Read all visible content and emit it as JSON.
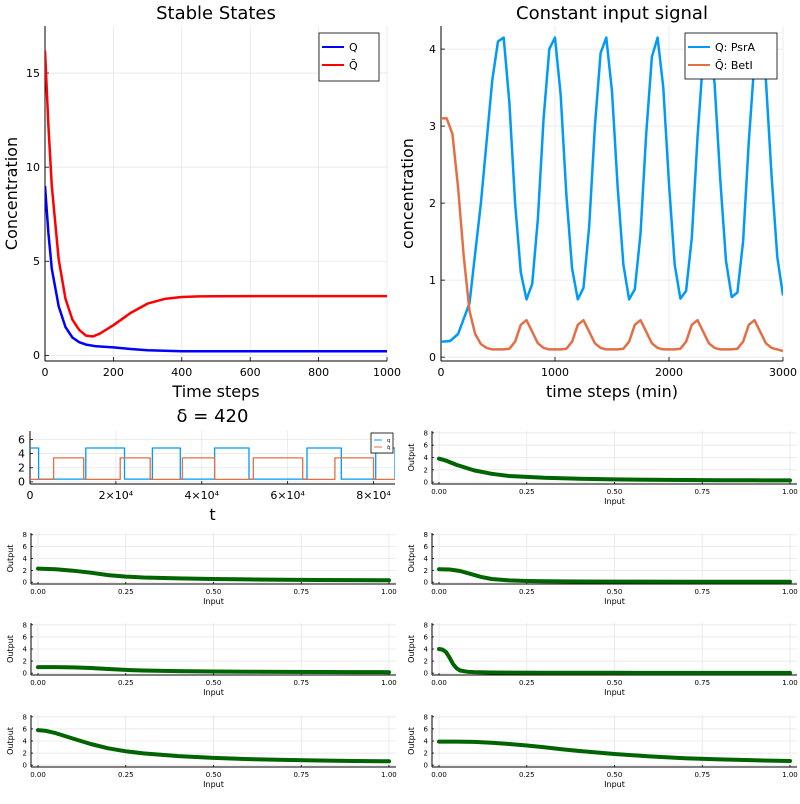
{
  "chart_data": [
    {
      "type": "line",
      "title": "Stable States",
      "xlabel": "Time steps",
      "ylabel": "Concentration",
      "xlim": [
        0,
        1000
      ],
      "ylim": [
        -0.3,
        17.5
      ],
      "xticks": [
        0,
        200,
        400,
        600,
        800,
        1000
      ],
      "yticks": [
        0,
        5,
        10,
        15
      ],
      "grid": true,
      "legend": "top-right",
      "series": [
        {
          "name": "Q",
          "color": "#0000ff",
          "x": [
            0,
            10,
            20,
            40,
            60,
            80,
            100,
            120,
            150,
            200,
            250,
            300,
            350,
            400,
            500,
            600,
            800,
            1000
          ],
          "y": [
            9.0,
            6.5,
            4.6,
            2.6,
            1.5,
            0.95,
            0.7,
            0.57,
            0.48,
            0.42,
            0.34,
            0.27,
            0.24,
            0.22,
            0.22,
            0.22,
            0.22,
            0.22
          ]
        },
        {
          "name": "Q̄",
          "color": "#ff0000",
          "x": [
            0,
            10,
            20,
            40,
            60,
            80,
            100,
            120,
            140,
            160,
            200,
            250,
            300,
            350,
            400,
            450,
            500,
            600,
            800,
            1000
          ],
          "y": [
            16.2,
            12.2,
            9.0,
            5.1,
            3.0,
            1.9,
            1.35,
            1.05,
            1.0,
            1.15,
            1.6,
            2.25,
            2.75,
            3.0,
            3.1,
            3.13,
            3.14,
            3.15,
            3.15,
            3.15
          ]
        }
      ]
    },
    {
      "type": "line",
      "title": "Constant input signal",
      "xlabel": "time steps (min)",
      "ylabel": "concentration",
      "xlim": [
        0,
        3000
      ],
      "ylim": [
        -0.05,
        4.3
      ],
      "xticks": [
        0,
        1000,
        2000,
        3000
      ],
      "yticks": [
        0,
        1,
        2,
        3,
        4
      ],
      "grid": true,
      "legend": "top-right",
      "series": [
        {
          "name": "Q: PsrA",
          "color": "#009af9",
          "x": [
            0,
            80,
            150,
            250,
            350,
            450,
            500,
            550,
            600,
            650,
            700,
            750,
            800,
            850,
            900,
            950,
            1000,
            1050,
            1100,
            1150,
            1200,
            1250,
            1300,
            1350,
            1400,
            1450,
            1500,
            1550,
            1600,
            1650,
            1700,
            1750,
            1800,
            1850,
            1900,
            1950,
            2000,
            2050,
            2100,
            2150,
            2200,
            2250,
            2300,
            2350,
            2400,
            2450,
            2500,
            2550,
            2600,
            2650,
            2700,
            2750,
            2800,
            2850,
            2900,
            2950,
            3000
          ],
          "y": [
            0.2,
            0.21,
            0.3,
            0.7,
            2.0,
            3.6,
            4.1,
            4.15,
            3.3,
            2.0,
            1.1,
            0.75,
            0.95,
            1.8,
            3.1,
            4.0,
            4.15,
            3.4,
            2.1,
            1.15,
            0.75,
            0.9,
            1.7,
            3.0,
            3.95,
            4.15,
            3.45,
            2.2,
            1.2,
            0.75,
            0.88,
            1.6,
            2.9,
            3.9,
            4.15,
            3.5,
            2.25,
            1.2,
            0.76,
            0.86,
            1.55,
            2.85,
            3.9,
            4.15,
            3.55,
            2.3,
            1.25,
            0.78,
            0.84,
            1.5,
            2.8,
            3.85,
            4.15,
            3.6,
            2.35,
            1.3,
            0.8
          ]
        },
        {
          "name": "Q̄: BetI",
          "color": "#e26f46",
          "x": [
            0,
            50,
            100,
            150,
            200,
            250,
            300,
            350,
            400,
            450,
            500,
            550,
            600,
            650,
            700,
            750,
            800,
            850,
            900,
            950,
            1000,
            1050,
            1100,
            1150,
            1200,
            1250,
            1300,
            1350,
            1400,
            1450,
            1500,
            1550,
            1600,
            1650,
            1700,
            1750,
            1800,
            1850,
            1900,
            1950,
            2000,
            2050,
            2100,
            2150,
            2200,
            2250,
            2300,
            2350,
            2400,
            2450,
            2500,
            2550,
            2600,
            2650,
            2700,
            2750,
            2800,
            2850,
            2900,
            2950,
            3000
          ],
          "y": [
            3.1,
            3.1,
            2.9,
            2.2,
            1.3,
            0.6,
            0.3,
            0.17,
            0.12,
            0.1,
            0.1,
            0.1,
            0.11,
            0.2,
            0.42,
            0.48,
            0.33,
            0.18,
            0.12,
            0.1,
            0.1,
            0.1,
            0.11,
            0.2,
            0.42,
            0.48,
            0.33,
            0.18,
            0.12,
            0.1,
            0.1,
            0.1,
            0.11,
            0.2,
            0.42,
            0.48,
            0.33,
            0.18,
            0.12,
            0.1,
            0.1,
            0.1,
            0.11,
            0.2,
            0.42,
            0.48,
            0.33,
            0.18,
            0.12,
            0.1,
            0.1,
            0.1,
            0.11,
            0.2,
            0.42,
            0.48,
            0.33,
            0.18,
            0.12,
            0.1,
            0.08
          ]
        }
      ]
    },
    {
      "type": "line",
      "title": "δ = 420",
      "xlabel": "t",
      "ylabel": "",
      "xlim": [
        0,
        85000
      ],
      "ylim": [
        -0.3,
        7.2
      ],
      "xticks": [
        0,
        20000,
        40000,
        60000,
        80000
      ],
      "xticklabels": [
        "0",
        "2×10⁴",
        "4×10⁴",
        "6×10⁴",
        "8×10⁴"
      ],
      "yticks": [
        0,
        2,
        4,
        6
      ],
      "grid": true,
      "legend": "top-right",
      "series": [
        {
          "name": "q",
          "color": "#009af9",
          "high": 4.8,
          "low": 0.4,
          "high_intervals": [
            [
              0,
              2000
            ],
            [
              13000,
              22000
            ],
            [
              28500,
              35000
            ],
            [
              43000,
              51000
            ],
            [
              64500,
              72500
            ],
            [
              80500,
              85000
            ]
          ]
        },
        {
          "name": "q̄",
          "color": "#e26f46",
          "high": 3.4,
          "low": 0.35,
          "high_intervals": [
            [
              5500,
              12500
            ],
            [
              21000,
              28000
            ],
            [
              35500,
              43000
            ],
            [
              52000,
              63500
            ],
            [
              71000,
              80000
            ]
          ]
        }
      ]
    },
    {
      "type": "line",
      "xlabel": "Input",
      "ylabel": "Output",
      "xlim": [
        -0.02,
        1.02
      ],
      "ylim": [
        -0.3,
        8.3
      ],
      "xticks": [
        0,
        0.25,
        0.5,
        0.75,
        1
      ],
      "xticklabels": [
        "0.00",
        "0.25",
        "0.50",
        "0.75",
        "1.00"
      ],
      "yticks": [
        0,
        2,
        4,
        6,
        8
      ],
      "grid": true,
      "color": "#006400",
      "x": [
        0,
        0.02,
        0.05,
        0.1,
        0.15,
        0.2,
        0.3,
        0.4,
        0.5,
        0.6,
        0.7,
        0.8,
        0.9,
        1.0
      ],
      "y": [
        3.8,
        3.5,
        2.8,
        1.9,
        1.35,
        1.0,
        0.7,
        0.55,
        0.45,
        0.4,
        0.35,
        0.32,
        0.3,
        0.28
      ]
    },
    {
      "type": "line",
      "xlabel": "Input",
      "ylabel": "Output",
      "xlim": [
        -0.02,
        1.02
      ],
      "ylim": [
        -0.3,
        8.3
      ],
      "xticks": [
        0,
        0.25,
        0.5,
        0.75,
        1
      ],
      "xticklabels": [
        "0.00",
        "0.25",
        "0.50",
        "0.75",
        "1.00"
      ],
      "yticks": [
        0,
        2,
        4,
        6,
        8
      ],
      "grid": true,
      "color": "#006400",
      "x": [
        0,
        0.05,
        0.1,
        0.15,
        0.2,
        0.25,
        0.3,
        0.4,
        0.5,
        0.6,
        0.7,
        0.8,
        0.9,
        1.0
      ],
      "y": [
        2.3,
        2.2,
        1.95,
        1.6,
        1.2,
        0.95,
        0.8,
        0.65,
        0.55,
        0.48,
        0.42,
        0.38,
        0.35,
        0.33
      ]
    },
    {
      "type": "line",
      "xlabel": "Input",
      "ylabel": "Output",
      "xlim": [
        -0.02,
        1.02
      ],
      "ylim": [
        -0.3,
        8.3
      ],
      "xticks": [
        0,
        0.25,
        0.5,
        0.75,
        1
      ],
      "xticklabels": [
        "0.00",
        "0.25",
        "0.50",
        "0.75",
        "1.00"
      ],
      "yticks": [
        0,
        2,
        4,
        6,
        8
      ],
      "grid": true,
      "color": "#006400",
      "x": [
        0,
        0.03,
        0.06,
        0.09,
        0.12,
        0.15,
        0.2,
        0.25,
        0.3,
        0.4,
        0.5,
        0.7,
        1.0
      ],
      "y": [
        2.2,
        2.15,
        1.9,
        1.4,
        0.9,
        0.55,
        0.3,
        0.2,
        0.15,
        0.12,
        0.1,
        0.08,
        0.07
      ]
    },
    {
      "type": "line",
      "xlabel": "Input",
      "ylabel": "Output",
      "xlim": [
        -0.02,
        1.02
      ],
      "ylim": [
        -0.3,
        8.3
      ],
      "xticks": [
        0,
        0.25,
        0.5,
        0.75,
        1
      ],
      "xticklabels": [
        "0.00",
        "0.25",
        "0.50",
        "0.75",
        "1.00"
      ],
      "yticks": [
        0,
        2,
        4,
        6,
        8
      ],
      "grid": true,
      "color": "#006400",
      "x": [
        0,
        0.05,
        0.1,
        0.15,
        0.2,
        0.25,
        0.3,
        0.4,
        0.5,
        0.6,
        0.7,
        0.8,
        0.9,
        1.0
      ],
      "y": [
        1.0,
        1.0,
        0.95,
        0.85,
        0.7,
        0.55,
        0.45,
        0.35,
        0.28,
        0.25,
        0.22,
        0.2,
        0.18,
        0.17
      ]
    },
    {
      "type": "line",
      "xlabel": "Input",
      "ylabel": "Output",
      "xlim": [
        -0.02,
        1.02
      ],
      "ylim": [
        -0.3,
        8.3
      ],
      "xticks": [
        0,
        0.25,
        0.5,
        0.75,
        1
      ],
      "xticklabels": [
        "0.00",
        "0.25",
        "0.50",
        "0.75",
        "1.00"
      ],
      "yticks": [
        0,
        2,
        4,
        6,
        8
      ],
      "grid": true,
      "color": "#006400",
      "x": [
        0,
        0.01,
        0.02,
        0.03,
        0.04,
        0.05,
        0.06,
        0.08,
        0.1,
        0.15,
        0.2,
        0.3,
        0.5,
        0.7,
        1.0
      ],
      "y": [
        4.0,
        3.9,
        3.5,
        2.6,
        1.5,
        0.8,
        0.45,
        0.25,
        0.18,
        0.12,
        0.1,
        0.08,
        0.06,
        0.05,
        0.05
      ]
    },
    {
      "type": "line",
      "xlabel": "Input",
      "ylabel": "Output",
      "xlim": [
        -0.02,
        1.02
      ],
      "ylim": [
        -0.3,
        8.3
      ],
      "xticks": [
        0,
        0.25,
        0.5,
        0.75,
        1
      ],
      "xticklabels": [
        "0.00",
        "0.25",
        "0.50",
        "0.75",
        "1.00"
      ],
      "yticks": [
        0,
        2,
        4,
        6,
        8
      ],
      "grid": true,
      "color": "#006400",
      "x": [
        0,
        0.02,
        0.05,
        0.1,
        0.15,
        0.2,
        0.25,
        0.3,
        0.4,
        0.5,
        0.6,
        0.7,
        0.8,
        0.9,
        1.0
      ],
      "y": [
        5.8,
        5.7,
        5.3,
        4.4,
        3.5,
        2.8,
        2.3,
        1.95,
        1.5,
        1.2,
        1.0,
        0.88,
        0.78,
        0.7,
        0.65
      ]
    },
    {
      "type": "line",
      "xlabel": "Input",
      "ylabel": "Output",
      "xlim": [
        -0.02,
        1.02
      ],
      "ylim": [
        -0.3,
        8.3
      ],
      "xticks": [
        0,
        0.25,
        0.5,
        0.75,
        1
      ],
      "xticklabels": [
        "0.00",
        "0.25",
        "0.50",
        "0.75",
        "1.00"
      ],
      "yticks": [
        0,
        2,
        4,
        6,
        8
      ],
      "grid": true,
      "color": "#006400",
      "x": [
        0,
        0.05,
        0.1,
        0.15,
        0.2,
        0.25,
        0.3,
        0.35,
        0.4,
        0.5,
        0.6,
        0.7,
        0.8,
        0.9,
        1.0
      ],
      "y": [
        3.9,
        3.9,
        3.85,
        3.7,
        3.5,
        3.25,
        2.95,
        2.65,
        2.35,
        1.85,
        1.45,
        1.15,
        0.95,
        0.8,
        0.7
      ]
    }
  ]
}
